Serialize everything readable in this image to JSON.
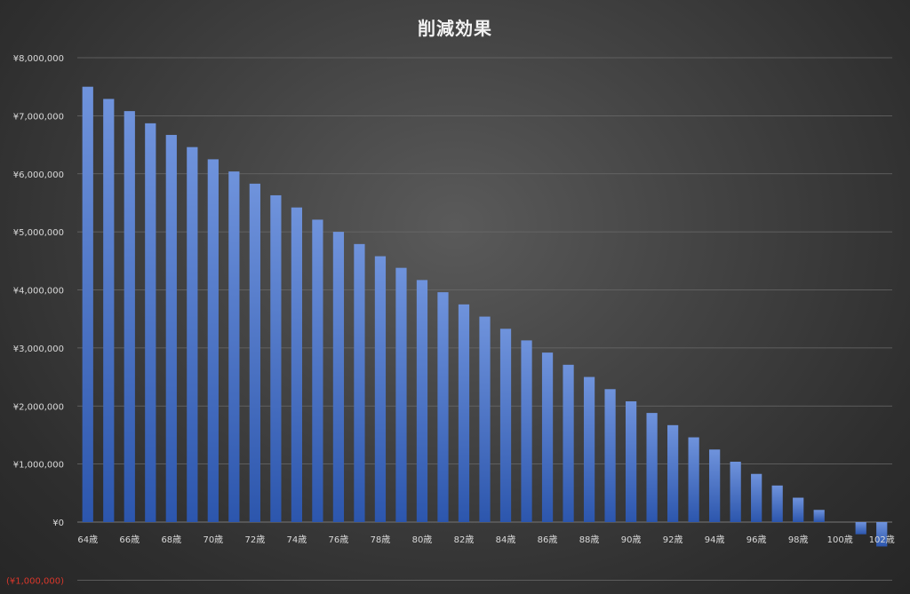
{
  "chart_data": {
    "type": "bar",
    "title": "削減効果",
    "xlabel": "",
    "ylabel": "",
    "ylim": [
      -1000000,
      8000000
    ],
    "grid": true,
    "legend": "none",
    "yticks": [
      {
        "value": 8000000,
        "label": "¥8,000,000"
      },
      {
        "value": 7000000,
        "label": "¥7,000,000"
      },
      {
        "value": 6000000,
        "label": "¥6,000,000"
      },
      {
        "value": 5000000,
        "label": "¥5,000,000"
      },
      {
        "value": 4000000,
        "label": "¥4,000,000"
      },
      {
        "value": 3000000,
        "label": "¥3,000,000"
      },
      {
        "value": 2000000,
        "label": "¥2,000,000"
      },
      {
        "value": 1000000,
        "label": "¥1,000,000"
      },
      {
        "value": 0,
        "label": "¥0"
      },
      {
        "value": -1000000,
        "label": "(¥1,000,000)"
      }
    ],
    "categories": [
      "64歳",
      "65歳",
      "66歳",
      "67歳",
      "68歳",
      "69歳",
      "70歳",
      "71歳",
      "72歳",
      "73歳",
      "74歳",
      "75歳",
      "76歳",
      "77歳",
      "78歳",
      "79歳",
      "80歳",
      "81歳",
      "82歳",
      "83歳",
      "84歳",
      "85歳",
      "86歳",
      "87歳",
      "88歳",
      "89歳",
      "90歳",
      "91歳",
      "92歳",
      "93歳",
      "94歳",
      "95歳",
      "96歳",
      "97歳",
      "98歳",
      "99歳",
      "100歳",
      "101歳",
      "102歳"
    ],
    "visible_tick_labels": [
      "64歳",
      "66歳",
      "68歳",
      "70歳",
      "72歳",
      "74歳",
      "76歳",
      "78歳",
      "80歳",
      "82歳",
      "84歳",
      "86歳",
      "88歳",
      "90歳",
      "92歳",
      "94歳",
      "96歳",
      "98歳",
      "100歳",
      "102歳"
    ],
    "values": [
      7500000,
      7290000,
      7080000,
      6870000,
      6670000,
      6460000,
      6250000,
      6040000,
      5830000,
      5630000,
      5420000,
      5210000,
      5000000,
      4790000,
      4580000,
      4380000,
      4170000,
      3960000,
      3750000,
      3540000,
      3330000,
      3130000,
      2920000,
      2710000,
      2500000,
      2290000,
      2080000,
      1880000,
      1670000,
      1460000,
      1250000,
      1040000,
      830000,
      630000,
      420000,
      210000,
      0,
      -210000,
      -420000
    ],
    "colors": {
      "bar_top": "#6f93dc",
      "bar_bottom": "#2c56ad",
      "gridline": "#6a6a6a",
      "axis_text": "#d9d9d9",
      "negative_text": "#d9372b",
      "title": "#f2f2f2"
    }
  }
}
